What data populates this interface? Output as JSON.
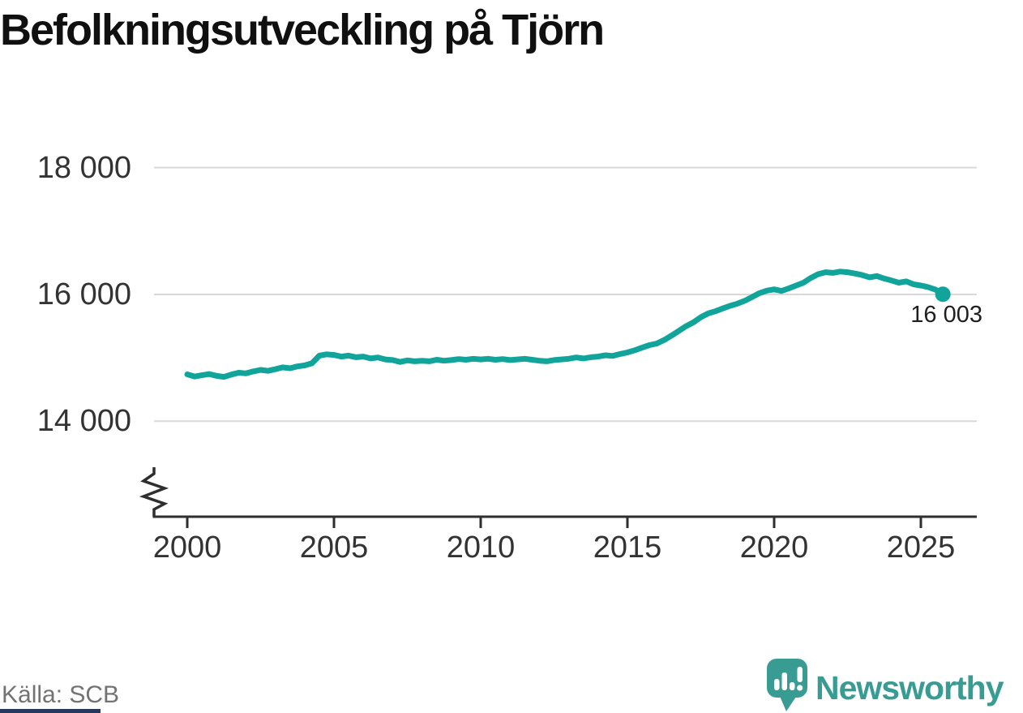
{
  "title": "Befolkningsutveckling på Tjörn",
  "source": "Källa: SCB",
  "branding": {
    "name": "Newsworthy"
  },
  "colors": {
    "line": "#11a49a",
    "grid": "#d9d9d9",
    "axis": "#2e2e2e",
    "tick_text": "#333333",
    "title_text": "#101010",
    "source_text": "#737373",
    "end_label_text": "#1f1f1f",
    "brand_teal": "#399c93",
    "footer_bar": "#24395b"
  },
  "chart_data": {
    "type": "line",
    "title": "Befolkningsutveckling på Tjörn",
    "xlabel": "",
    "ylabel": "",
    "grid": "horizontal",
    "axis_break": true,
    "legend": "none",
    "xlim": [
      1998.8,
      2027.0
    ],
    "ylim": [
      13000,
      18400
    ],
    "yticks": [
      {
        "value": 14000,
        "label": "14 000"
      },
      {
        "value": 16000,
        "label": "16 000"
      },
      {
        "value": 18000,
        "label": "18 000"
      }
    ],
    "xticks": [
      {
        "value": 2000,
        "label": "2000"
      },
      {
        "value": 2005,
        "label": "2005"
      },
      {
        "value": 2010,
        "label": "2010"
      },
      {
        "value": 2015,
        "label": "2015"
      },
      {
        "value": 2020,
        "label": "2020"
      },
      {
        "value": 2025,
        "label": "2025"
      }
    ],
    "end_point": {
      "x": 2025.75,
      "value": 16003,
      "label": "16 003"
    },
    "x": [
      2000,
      2000.25,
      2000.5,
      2000.75,
      2001,
      2001.25,
      2001.5,
      2001.75,
      2002,
      2002.25,
      2002.5,
      2002.75,
      2003,
      2003.25,
      2003.5,
      2003.75,
      2004,
      2004.25,
      2004.5,
      2004.75,
      2005,
      2005.25,
      2005.5,
      2005.75,
      2006,
      2006.25,
      2006.5,
      2006.75,
      2007,
      2007.25,
      2007.5,
      2007.75,
      2008,
      2008.25,
      2008.5,
      2008.75,
      2009,
      2009.25,
      2009.5,
      2009.75,
      2010,
      2010.25,
      2010.5,
      2010.75,
      2011,
      2011.25,
      2011.5,
      2011.75,
      2012,
      2012.25,
      2012.5,
      2012.75,
      2013,
      2013.25,
      2013.5,
      2013.75,
      2014,
      2014.25,
      2014.5,
      2014.75,
      2015,
      2015.25,
      2015.5,
      2015.75,
      2016,
      2016.25,
      2016.5,
      2016.75,
      2017,
      2017.25,
      2017.5,
      2017.75,
      2018,
      2018.25,
      2018.5,
      2018.75,
      2019,
      2019.25,
      2019.5,
      2019.75,
      2020,
      2020.25,
      2020.5,
      2020.75,
      2021,
      2021.25,
      2021.5,
      2021.75,
      2022,
      2022.25,
      2022.5,
      2022.75,
      2023,
      2023.25,
      2023.5,
      2023.75,
      2024,
      2024.25,
      2024.5,
      2024.75,
      2025,
      2025.25,
      2025.5,
      2025.75
    ],
    "series": [
      {
        "name": "Befolkning",
        "values": [
          14740,
          14705,
          14725,
          14745,
          14715,
          14700,
          14735,
          14765,
          14755,
          14785,
          14810,
          14795,
          14820,
          14850,
          14835,
          14865,
          14880,
          14915,
          15035,
          15055,
          15045,
          15020,
          15035,
          15010,
          15020,
          14990,
          15005,
          14975,
          14965,
          14935,
          14960,
          14945,
          14955,
          14945,
          14970,
          14955,
          14965,
          14980,
          14970,
          14985,
          14975,
          14985,
          14970,
          14980,
          14965,
          14975,
          14985,
          14970,
          14955,
          14945,
          14965,
          14975,
          14985,
          15005,
          14990,
          15010,
          15020,
          15040,
          15030,
          15060,
          15085,
          15120,
          15160,
          15200,
          15225,
          15280,
          15350,
          15425,
          15500,
          15560,
          15640,
          15700,
          15735,
          15780,
          15820,
          15855,
          15900,
          15960,
          16020,
          16060,
          16080,
          16055,
          16095,
          16140,
          16185,
          16260,
          16320,
          16350,
          16340,
          16360,
          16350,
          16330,
          16305,
          16270,
          16290,
          16250,
          16220,
          16185,
          16205,
          16160,
          16140,
          16115,
          16075,
          16003
        ]
      }
    ],
    "source": "Källa: SCB"
  }
}
